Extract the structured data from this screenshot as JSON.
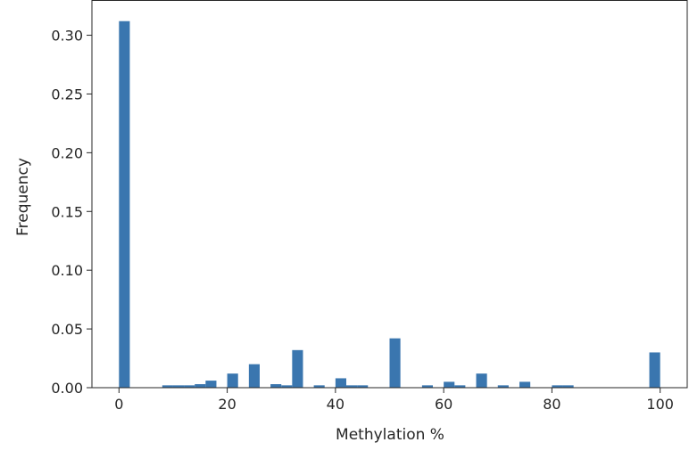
{
  "chart_data": {
    "type": "bar",
    "title": "",
    "xlabel": "Methylation %",
    "ylabel": "Frequency",
    "xlim": [
      -5,
      105
    ],
    "ylim": [
      0,
      0.33
    ],
    "xticks": [
      0,
      20,
      40,
      60,
      80,
      100
    ],
    "xtick_labels": [
      "0",
      "20",
      "40",
      "60",
      "80",
      "100"
    ],
    "yticks": [
      0.0,
      0.05,
      0.1,
      0.15,
      0.2,
      0.25,
      0.3
    ],
    "ytick_labels": [
      "0.00",
      "0.05",
      "0.10",
      "0.15",
      "0.20",
      "0.25",
      "0.30"
    ],
    "grid": false,
    "bin_width": 2,
    "bars": [
      {
        "x": 0,
        "value": 0.312
      },
      {
        "x": 8,
        "value": 0.002
      },
      {
        "x": 10,
        "value": 0.002
      },
      {
        "x": 12,
        "value": 0.002
      },
      {
        "x": 14,
        "value": 0.003
      },
      {
        "x": 16,
        "value": 0.006
      },
      {
        "x": 20,
        "value": 0.012
      },
      {
        "x": 24,
        "value": 0.02
      },
      {
        "x": 28,
        "value": 0.003
      },
      {
        "x": 30,
        "value": 0.002
      },
      {
        "x": 32,
        "value": 0.032
      },
      {
        "x": 36,
        "value": 0.002
      },
      {
        "x": 40,
        "value": 0.008
      },
      {
        "x": 42,
        "value": 0.002
      },
      {
        "x": 44,
        "value": 0.002
      },
      {
        "x": 50,
        "value": 0.042
      },
      {
        "x": 56,
        "value": 0.002
      },
      {
        "x": 60,
        "value": 0.005
      },
      {
        "x": 62,
        "value": 0.002
      },
      {
        "x": 66,
        "value": 0.012
      },
      {
        "x": 70,
        "value": 0.002
      },
      {
        "x": 74,
        "value": 0.005
      },
      {
        "x": 80,
        "value": 0.002
      },
      {
        "x": 82,
        "value": 0.002
      },
      {
        "x": 98,
        "value": 0.03
      }
    ],
    "colors": {
      "bar": "#3a76af",
      "axis": "#262626"
    }
  }
}
